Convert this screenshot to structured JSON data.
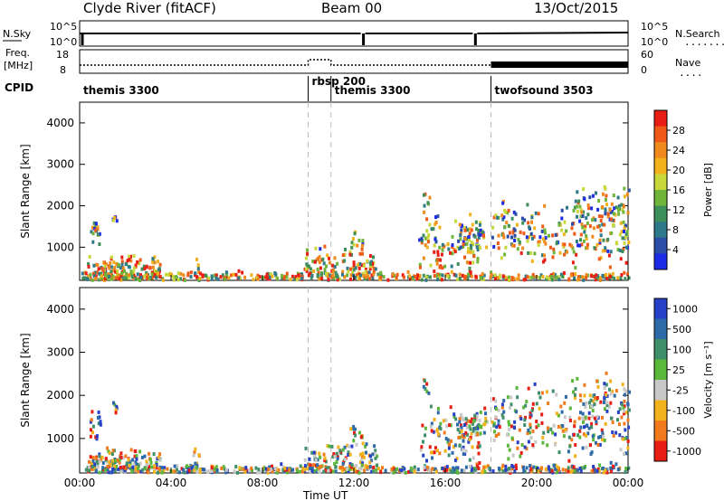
{
  "header": {
    "station": "Clyde River (fitACF)",
    "beam": "Beam 00",
    "date": "13/Oct/2015"
  },
  "small_panels": {
    "nsky_label": "N.Sky",
    "nsearch_label": "N.Search",
    "freq_label_1": "Freq.",
    "freq_label_2": "[MHz]",
    "nave_label": "Nave",
    "cpid_label": "CPID",
    "left_ticks_top": [
      "10^5",
      "10^0"
    ],
    "right_ticks_top": [
      "10^5",
      "10^0"
    ],
    "left_ticks_freq": [
      "18",
      "8"
    ],
    "right_ticks_nave": [
      "60",
      "0"
    ]
  },
  "cpid_segments": [
    {
      "label": "themis 3300",
      "start_hr": 0
    },
    {
      "label": "rbsp 200",
      "start_hr": 10.0
    },
    {
      "label": "themis 3300",
      "start_hr": 11.0
    },
    {
      "label": "twofsound 3503",
      "start_hr": 18.0
    }
  ],
  "chart_data": [
    {
      "type": "heatmap",
      "name": "Power",
      "ylabel": "Slant Range [km]",
      "yticks": [
        "1000",
        "2000",
        "3000",
        "4000"
      ],
      "ylim": [
        200,
        4500
      ],
      "xlim_hours": [
        0,
        24
      ],
      "colorbar_title": "Power [dB]",
      "colorbar_ticks": [
        "4",
        "8",
        "12",
        "16",
        "20",
        "24",
        "28"
      ],
      "colorbar_colors": [
        "#1e2be6",
        "#2a4ea8",
        "#2f7a8a",
        "#3f8f5a",
        "#70b53a",
        "#c8d83a",
        "#f2b21c",
        "#f08a1c",
        "#f05a18",
        "#e81e14"
      ]
    },
    {
      "type": "heatmap",
      "name": "Velocity",
      "ylabel": "Slant Range [km]",
      "yticks": [
        "1000",
        "2000",
        "3000",
        "4000"
      ],
      "ylim": [
        200,
        4500
      ],
      "xlim_hours": [
        0,
        24
      ],
      "colorbar_title": "Velocity [m s⁻¹]",
      "colorbar_ticks": [
        "1000",
        "500",
        "100",
        "25",
        "-25",
        "-100",
        "-500",
        "-1000"
      ],
      "colorbar_colors": [
        "#2740c8",
        "#2f6aa8",
        "#3f8f6a",
        "#5cb83a",
        "#c8c8c8",
        "#f2b21c",
        "#f07a1c",
        "#e81e14"
      ]
    }
  ],
  "x_axis": {
    "ticks": [
      "00:00",
      "04:00",
      "08:00",
      "12:00",
      "16:00",
      "20:00",
      "00:00"
    ],
    "label": "Time UT"
  }
}
